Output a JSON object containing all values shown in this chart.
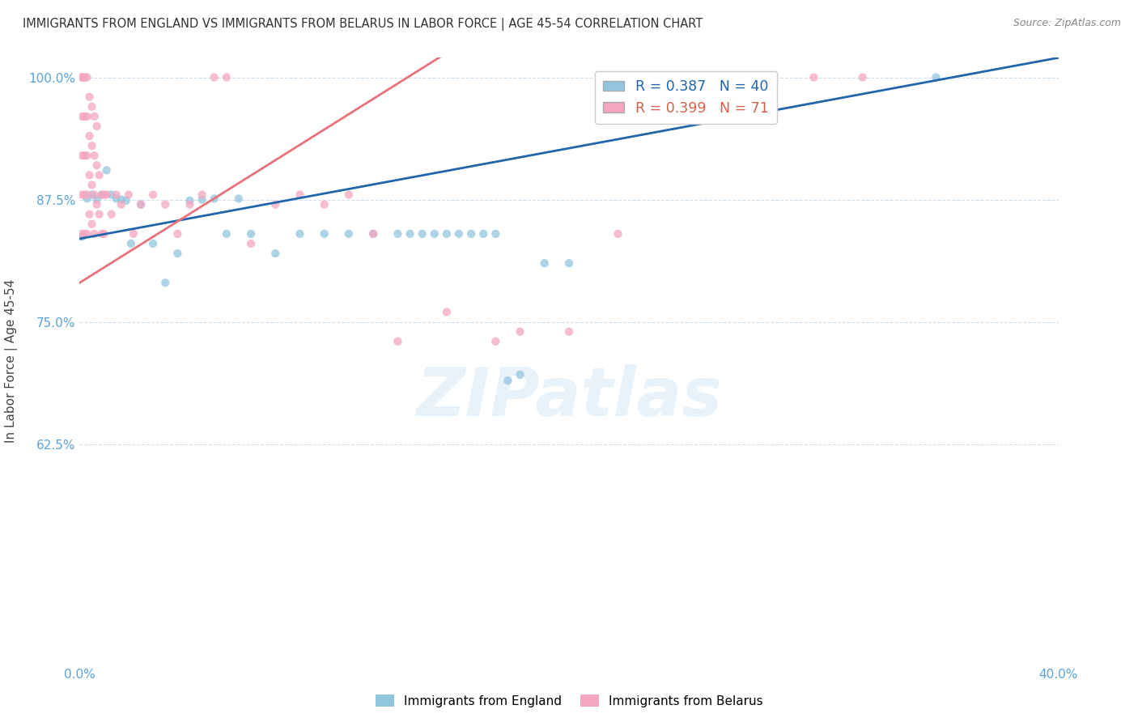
{
  "title": "IMMIGRANTS FROM ENGLAND VS IMMIGRANTS FROM BELARUS IN LABOR FORCE | AGE 45-54 CORRELATION CHART",
  "source": "Source: ZipAtlas.com",
  "ylabel": "In Labor Force | Age 45-54",
  "x_min": 0.0,
  "x_max": 0.4,
  "y_min": 0.4,
  "y_max": 1.02,
  "x_ticks": [
    0.0,
    0.05,
    0.1,
    0.15,
    0.2,
    0.25,
    0.3,
    0.35,
    0.4
  ],
  "x_ticklabels": [
    "0.0%",
    "",
    "",
    "",
    "",
    "",
    "",
    "",
    "40.0%"
  ],
  "y_ticks": [
    0.625,
    0.75,
    0.875,
    1.0
  ],
  "y_ticklabels": [
    "62.5%",
    "75.0%",
    "87.5%",
    "100.0%"
  ],
  "england_color": "#92c5de",
  "belarus_color": "#f4a6c0",
  "england_trend_color": "#2166ac",
  "belarus_trend_color": "#e8727a",
  "england_R": 0.387,
  "england_N": 40,
  "belarus_R": 0.399,
  "belarus_N": 71,
  "watermark": "ZIPatlas",
  "eng_x": [
    0.001,
    0.003,
    0.005,
    0.007,
    0.009,
    0.011,
    0.013,
    0.015,
    0.017,
    0.019,
    0.021,
    0.025,
    0.03,
    0.035,
    0.04,
    0.045,
    0.05,
    0.055,
    0.06,
    0.065,
    0.07,
    0.08,
    0.09,
    0.1,
    0.11,
    0.12,
    0.13,
    0.135,
    0.14,
    0.145,
    0.15,
    0.155,
    0.16,
    0.165,
    0.17,
    0.175,
    0.18,
    0.19,
    0.2,
    0.35
  ],
  "eng_y": [
    0.837,
    0.876,
    0.88,
    0.875,
    0.88,
    0.905,
    0.88,
    0.876,
    0.875,
    0.874,
    0.83,
    0.87,
    0.83,
    0.79,
    0.82,
    0.874,
    0.875,
    0.876,
    0.84,
    0.876,
    0.84,
    0.82,
    0.84,
    0.84,
    0.84,
    0.84,
    0.84,
    0.84,
    0.84,
    0.84,
    0.84,
    0.84,
    0.84,
    0.84,
    0.84,
    0.69,
    0.696,
    0.81,
    0.81,
    1.0
  ],
  "bel_x": [
    0.001,
    0.001,
    0.001,
    0.001,
    0.001,
    0.001,
    0.001,
    0.001,
    0.002,
    0.002,
    0.002,
    0.002,
    0.002,
    0.002,
    0.003,
    0.003,
    0.003,
    0.003,
    0.003,
    0.004,
    0.004,
    0.004,
    0.004,
    0.005,
    0.005,
    0.005,
    0.005,
    0.006,
    0.006,
    0.006,
    0.006,
    0.007,
    0.007,
    0.007,
    0.008,
    0.008,
    0.009,
    0.009,
    0.01,
    0.01,
    0.011,
    0.013,
    0.015,
    0.017,
    0.02,
    0.022,
    0.025,
    0.03,
    0.035,
    0.04,
    0.045,
    0.05,
    0.055,
    0.06,
    0.07,
    0.08,
    0.09,
    0.1,
    0.11,
    0.12,
    0.13,
    0.15,
    0.17,
    0.18,
    0.2,
    0.22,
    0.25,
    0.26,
    0.28,
    0.3,
    0.32
  ],
  "bel_y": [
    1.0,
    1.0,
    1.0,
    1.0,
    0.96,
    0.92,
    0.88,
    0.84,
    1.0,
    1.0,
    0.96,
    0.92,
    0.88,
    0.84,
    1.0,
    0.96,
    0.92,
    0.88,
    0.84,
    0.98,
    0.94,
    0.9,
    0.86,
    0.97,
    0.93,
    0.89,
    0.85,
    0.96,
    0.92,
    0.88,
    0.84,
    0.95,
    0.91,
    0.87,
    0.9,
    0.86,
    0.88,
    0.84,
    0.88,
    0.84,
    0.88,
    0.86,
    0.88,
    0.87,
    0.88,
    0.84,
    0.87,
    0.88,
    0.87,
    0.84,
    0.87,
    0.88,
    1.0,
    1.0,
    0.83,
    0.87,
    0.88,
    0.87,
    0.88,
    0.84,
    0.73,
    0.76,
    0.73,
    0.74,
    0.74,
    0.84,
    1.0,
    1.0,
    1.0,
    1.0,
    1.0
  ]
}
